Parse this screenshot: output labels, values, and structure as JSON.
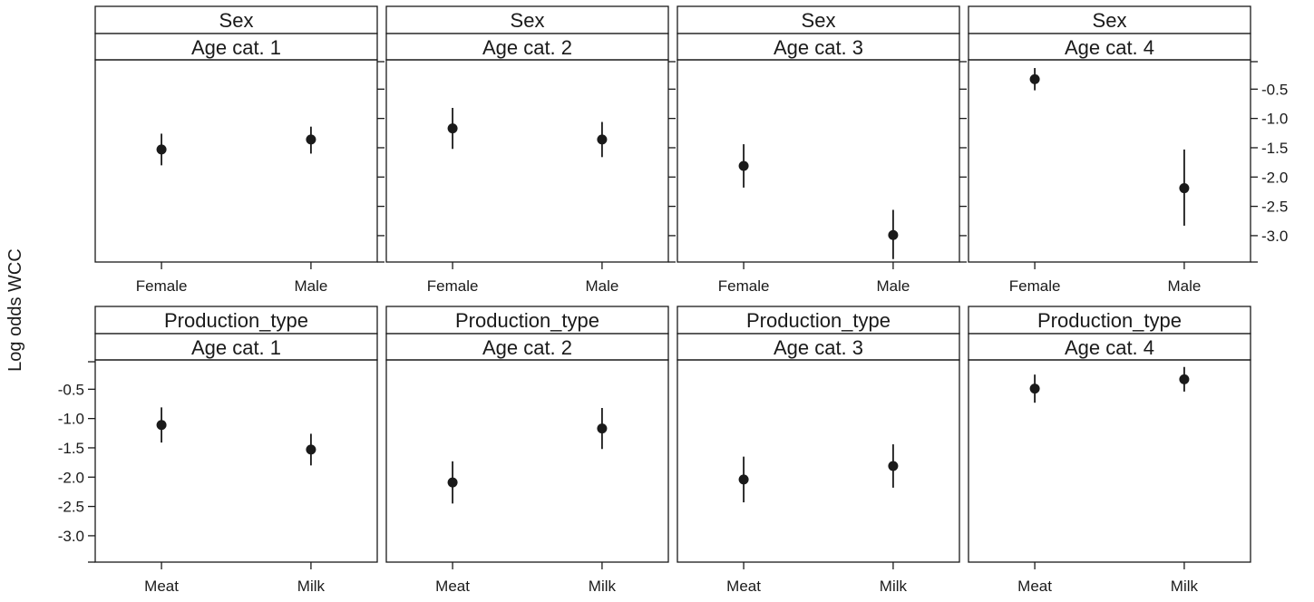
{
  "chart_data": {
    "type": "scatter",
    "layout": "lattice-effect-plot",
    "ylabel": "Log odds WCC",
    "ylim": [
      -3.45,
      0.0
    ],
    "yticks": [
      -0.5,
      -1.0,
      -1.5,
      -2.0,
      -2.5,
      -3.0
    ],
    "y_tick_labels": [
      "-0.5",
      "-1.0",
      "-1.5",
      "-2.0",
      "-2.5",
      "-3.0"
    ],
    "rows": [
      {
        "variable": "Sex",
        "categories": [
          "Female",
          "Male"
        ],
        "panels": [
          {
            "strip_top": "Sex",
            "strip_bottom": "Age cat. 1",
            "points": [
              {
                "x": "Female",
                "y": -1.53,
                "lower": -1.8,
                "upper": -1.26
              },
              {
                "x": "Male",
                "y": -1.36,
                "lower": -1.6,
                "upper": -1.14
              }
            ]
          },
          {
            "strip_top": "Sex",
            "strip_bottom": "Age cat. 2",
            "points": [
              {
                "x": "Female",
                "y": -1.17,
                "lower": -1.52,
                "upper": -0.82
              },
              {
                "x": "Male",
                "y": -1.36,
                "lower": -1.66,
                "upper": -1.06
              }
            ]
          },
          {
            "strip_top": "Sex",
            "strip_bottom": "Age cat. 3",
            "points": [
              {
                "x": "Female",
                "y": -1.81,
                "lower": -2.18,
                "upper": -1.44
              },
              {
                "x": "Male",
                "y": -2.99,
                "lower": -3.4,
                "upper": -2.56
              }
            ]
          },
          {
            "strip_top": "Sex",
            "strip_bottom": "Age cat. 4",
            "points": [
              {
                "x": "Female",
                "y": -0.33,
                "lower": -0.52,
                "upper": -0.14
              },
              {
                "x": "Male",
                "y": -2.19,
                "lower": -2.83,
                "upper": -1.53
              }
            ]
          }
        ]
      },
      {
        "variable": "Production_type",
        "categories": [
          "Meat",
          "Milk"
        ],
        "panels": [
          {
            "strip_top": "Production_type",
            "strip_bottom": "Age cat. 1",
            "points": [
              {
                "x": "Meat",
                "y": -1.11,
                "lower": -1.41,
                "upper": -0.81
              },
              {
                "x": "Milk",
                "y": -1.53,
                "lower": -1.8,
                "upper": -1.26
              }
            ]
          },
          {
            "strip_top": "Production_type",
            "strip_bottom": "Age cat. 2",
            "points": [
              {
                "x": "Meat",
                "y": -2.09,
                "lower": -2.45,
                "upper": -1.73
              },
              {
                "x": "Milk",
                "y": -1.17,
                "lower": -1.52,
                "upper": -0.82
              }
            ]
          },
          {
            "strip_top": "Production_type",
            "strip_bottom": "Age cat. 3",
            "points": [
              {
                "x": "Meat",
                "y": -2.04,
                "lower": -2.43,
                "upper": -1.65
              },
              {
                "x": "Milk",
                "y": -1.81,
                "lower": -2.18,
                "upper": -1.44
              }
            ]
          },
          {
            "strip_top": "Production_type",
            "strip_bottom": "Age cat. 4",
            "points": [
              {
                "x": "Meat",
                "y": -0.49,
                "lower": -0.73,
                "upper": -0.25
              },
              {
                "x": "Milk",
                "y": -0.33,
                "lower": -0.54,
                "upper": -0.12
              }
            ]
          }
        ]
      }
    ],
    "y_axis_side_by_row": [
      "right",
      "left"
    ],
    "grid": false,
    "colors": {
      "points": "#1a1a1a",
      "axes": "#1a1a1a",
      "background": "#ffffff"
    }
  }
}
